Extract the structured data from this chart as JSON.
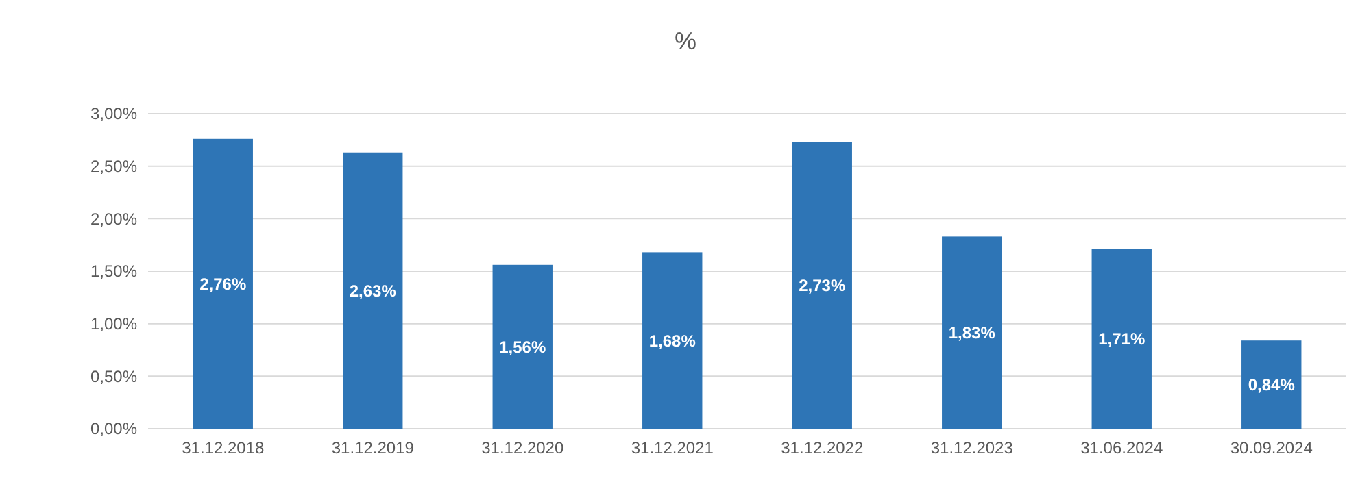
{
  "chart_data": {
    "type": "bar",
    "title": "%",
    "categories": [
      "31.12.2018",
      "31.12.2019",
      "31.12.2020",
      "31.12.2021",
      "31.12.2022",
      "31.12.2023",
      "31.06.2024",
      "30.09.2024"
    ],
    "values": [
      2.76,
      2.63,
      1.56,
      1.68,
      2.73,
      1.83,
      1.71,
      0.84
    ],
    "value_labels": [
      "2,76%",
      "2,63%",
      "1,56%",
      "1,68%",
      "2,73%",
      "1,83%",
      "1,71%",
      "0,84%"
    ],
    "color": "#2e75b6",
    "ylim": [
      0,
      3
    ],
    "yticks": [
      {
        "value": 0,
        "label": "0,00%"
      },
      {
        "value": 0.5,
        "label": "0,50%"
      },
      {
        "value": 1,
        "label": "1,00%"
      },
      {
        "value": 1.5,
        "label": "1,50%"
      },
      {
        "value": 2,
        "label": "2,00%"
      },
      {
        "value": 2.5,
        "label": "2,50%"
      },
      {
        "value": 3,
        "label": "3,00%"
      }
    ],
    "grid": true
  }
}
